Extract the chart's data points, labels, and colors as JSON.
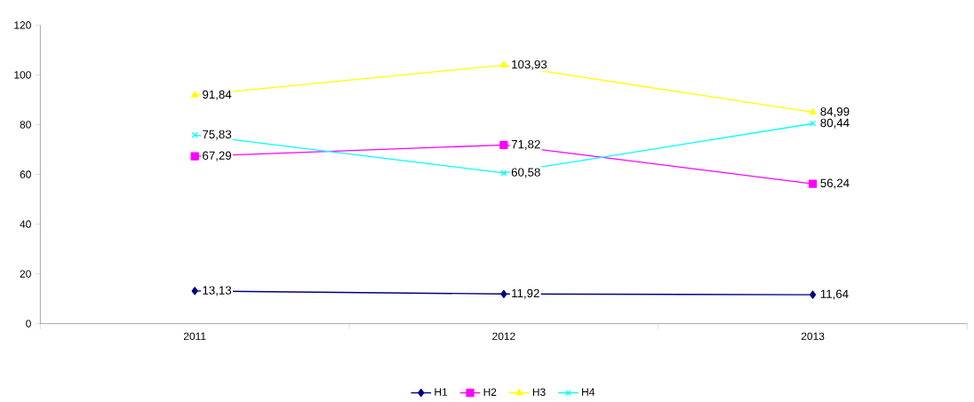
{
  "chart_data": {
    "type": "line",
    "categories": [
      "2011",
      "2012",
      "2013"
    ],
    "series": [
      {
        "name": "H1",
        "color": "#000080",
        "marker": "diamond",
        "values": [
          13.13,
          11.92,
          11.64
        ],
        "value_labels": [
          "13,13",
          "11,92",
          "11,64"
        ]
      },
      {
        "name": "H2",
        "color": "#ff00ff",
        "marker": "square",
        "values": [
          67.29,
          71.82,
          56.24
        ],
        "value_labels": [
          "67,29",
          "71,82",
          "56,24"
        ]
      },
      {
        "name": "H3",
        "color": "#ffff00",
        "marker": "triangle",
        "values": [
          91.84,
          103.93,
          84.99
        ],
        "value_labels": [
          "91,84",
          "103,93",
          "84,99"
        ]
      },
      {
        "name": "H4",
        "color": "#00ffff",
        "marker": "cross",
        "values": [
          75.83,
          60.58,
          80.44
        ],
        "value_labels": [
          "75,83",
          "60,58",
          "80,44"
        ]
      }
    ],
    "ylim": [
      0,
      120
    ],
    "yticks": [
      0,
      20,
      40,
      60,
      80,
      100,
      120
    ],
    "grid": false,
    "legend": "bottom",
    "line_style": "solid"
  }
}
